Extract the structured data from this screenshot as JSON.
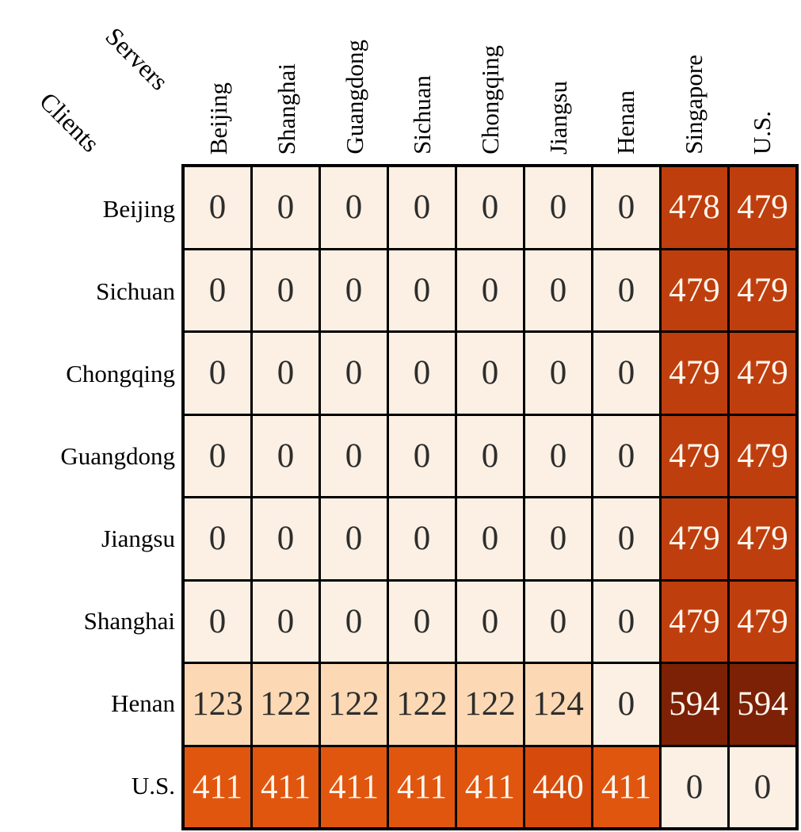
{
  "figure": {
    "corner": {
      "servers_label": "Servers",
      "clients_label": "Clients"
    }
  },
  "chart_data": {
    "type": "heatmap",
    "title": "",
    "x_axis_label": "Servers",
    "y_axis_label": "Clients",
    "x_categories": [
      "Beijing",
      "Shanghai",
      "Guangdong",
      "Sichuan",
      "Chongqing",
      "Jiangsu",
      "Henan",
      "Singapore",
      "U.S."
    ],
    "y_categories": [
      "Beijing",
      "Sichuan",
      "Chongqing",
      "Guangdong",
      "Jiangsu",
      "Shanghai",
      "Henan",
      "U.S."
    ],
    "matrix": [
      [
        0,
        0,
        0,
        0,
        0,
        0,
        0,
        478,
        479
      ],
      [
        0,
        0,
        0,
        0,
        0,
        0,
        0,
        479,
        479
      ],
      [
        0,
        0,
        0,
        0,
        0,
        0,
        0,
        479,
        479
      ],
      [
        0,
        0,
        0,
        0,
        0,
        0,
        0,
        479,
        479
      ],
      [
        0,
        0,
        0,
        0,
        0,
        0,
        0,
        479,
        479
      ],
      [
        0,
        0,
        0,
        0,
        0,
        0,
        0,
        479,
        479
      ],
      [
        123,
        122,
        122,
        122,
        122,
        124,
        0,
        594,
        594
      ],
      [
        411,
        411,
        411,
        411,
        411,
        440,
        411,
        0,
        0
      ]
    ],
    "colormap_name": "Oranges",
    "grid_line_color": "#000000",
    "color_scale": {
      "0": {
        "bg": "#fbf0e3",
        "fg": "#2d2d2d"
      },
      "122": {
        "bg": "#fcd9b4",
        "fg": "#2d2d2d"
      },
      "123": {
        "bg": "#fcd9b4",
        "fg": "#2d2d2d"
      },
      "124": {
        "bg": "#fcd9b4",
        "fg": "#2d2d2d"
      },
      "411": {
        "bg": "#e1560f",
        "fg": "#fdf5ec"
      },
      "440": {
        "bg": "#d64b0b",
        "fg": "#fdf5ec"
      },
      "478": {
        "bg": "#bf3e0d",
        "fg": "#fdf5ec"
      },
      "479": {
        "bg": "#bf3e0d",
        "fg": "#fdf5ec"
      },
      "594": {
        "bg": "#7c2106",
        "fg": "#fdf5ec"
      }
    }
  }
}
